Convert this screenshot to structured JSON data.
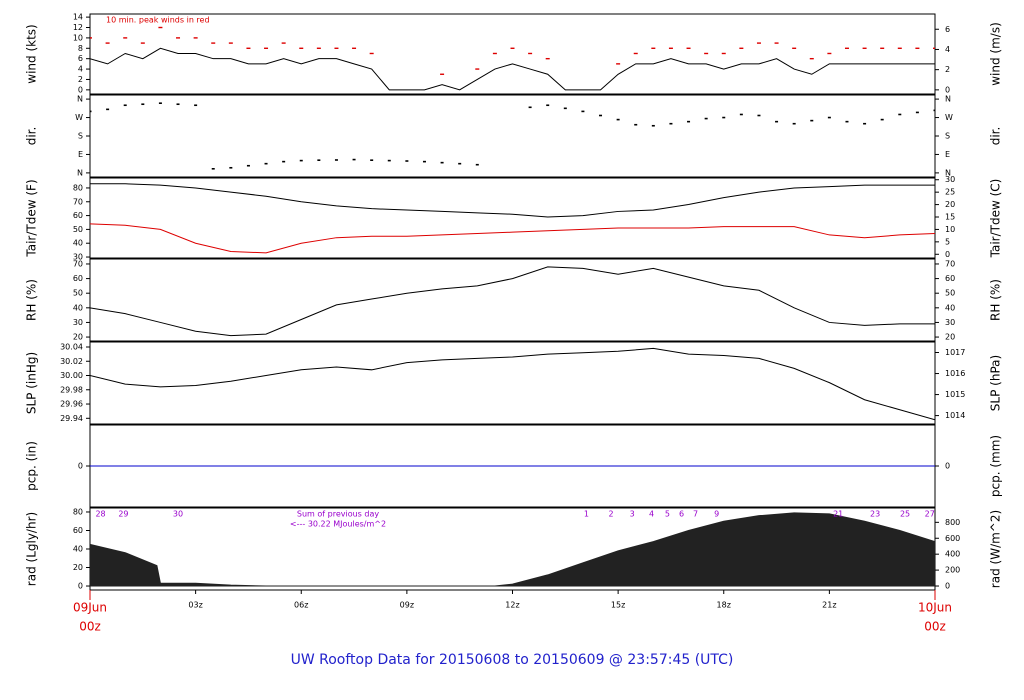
{
  "title": "UW Rooftop Data for 20150608  to  20150609 @ 23:57:45  (UTC)",
  "xlim": [
    0,
    24
  ],
  "xticks": [
    {
      "value": 0,
      "label": "09Jun"
    },
    {
      "value": 3,
      "label": "03z"
    },
    {
      "value": 6,
      "label": "06z"
    },
    {
      "value": 9,
      "label": "09z"
    },
    {
      "value": 12,
      "label": "12z"
    },
    {
      "value": 15,
      "label": "15z"
    },
    {
      "value": 18,
      "label": "18z"
    },
    {
      "value": 21,
      "label": "21z"
    },
    {
      "value": 24,
      "label": "10Jun"
    }
  ],
  "x_sublabels": [
    {
      "value": 0,
      "label": "00z"
    },
    {
      "value": 24,
      "label": "00z"
    }
  ],
  "chart_data": [
    {
      "type": "line",
      "ylabel": "wind (kts)",
      "y2label": "wind (m/s)",
      "annotation": "10 min. peak winds in red",
      "ylim": [
        -0.8,
        14.6
      ],
      "yticks": [
        0,
        2,
        4,
        6,
        8,
        10,
        12,
        14
      ],
      "y2lim": [
        -0.41,
        7.51
      ],
      "y2ticks": [
        0,
        2,
        4,
        6
      ],
      "series": [
        {
          "color": "#000000",
          "x": [
            0,
            0.5,
            1,
            1.5,
            2,
            2.5,
            3,
            3.5,
            4,
            4.5,
            5,
            5.5,
            6,
            6.5,
            7,
            7.5,
            8,
            8.5,
            9,
            9.5,
            10,
            10.5,
            11,
            11.5,
            12,
            12.5,
            13,
            13.5,
            14,
            14.5,
            15,
            15.5,
            16,
            16.5,
            17,
            17.5,
            18,
            18.5,
            19,
            19.5,
            20,
            20.5,
            21,
            21.5,
            22,
            22.5,
            23,
            23.5,
            24
          ],
          "values": [
            6,
            5,
            7,
            6,
            8,
            7,
            7,
            6,
            6,
            5,
            5,
            6,
            5,
            6,
            6,
            5,
            4,
            0,
            0,
            0,
            1,
            0,
            2,
            4,
            5,
            4,
            3,
            0,
            0,
            0,
            3,
            5,
            5,
            6,
            5,
            5,
            4,
            5,
            5,
            6,
            4,
            3,
            5,
            5,
            5,
            5,
            5,
            5,
            5
          ]
        },
        {
          "type": "dots",
          "color": "#dd0000",
          "x": [
            0,
            0.5,
            1,
            1.5,
            2,
            2.5,
            3,
            3.5,
            4,
            4.5,
            5,
            5.5,
            6,
            6.5,
            7,
            7.5,
            8,
            8.5,
            9,
            9.5,
            10,
            10.5,
            11,
            11.5,
            12,
            12.5,
            13,
            13.5,
            14,
            14.5,
            15,
            15.5,
            16,
            16.5,
            17,
            17.5,
            18,
            18.5,
            19,
            19.5,
            20,
            20.5,
            21,
            21.5,
            22,
            22.5,
            23,
            23.5,
            24
          ],
          "values": [
            10,
            9,
            10,
            9,
            12,
            10,
            10,
            9,
            9,
            8,
            8,
            9,
            8,
            8,
            8,
            8,
            7,
            null,
            null,
            null,
            3,
            null,
            4,
            7,
            8,
            7,
            6,
            null,
            null,
            null,
            5,
            7,
            8,
            8,
            8,
            7,
            7,
            8,
            9,
            9,
            8,
            6,
            7,
            8,
            8,
            8,
            8,
            8,
            8
          ]
        }
      ]
    },
    {
      "type": "scatter",
      "ylabel": "dir.",
      "y2label": "dir.",
      "ylim": [
        -20,
        380
      ],
      "yticks": [
        {
          "value": 0,
          "label": "N"
        },
        {
          "value": 90,
          "label": "E"
        },
        {
          "value": 180,
          "label": "S"
        },
        {
          "value": 270,
          "label": "W"
        },
        {
          "value": 360,
          "label": "N"
        }
      ],
      "y2lim": [
        -20,
        380
      ],
      "y2ticks": [
        {
          "value": 0,
          "label": "N"
        },
        {
          "value": 90,
          "label": "E"
        },
        {
          "value": 180,
          "label": "S"
        },
        {
          "value": 270,
          "label": "W"
        },
        {
          "value": 360,
          "label": "N"
        }
      ],
      "series": [
        {
          "color": "#000000",
          "x": [
            0,
            0.5,
            1,
            1.5,
            2,
            2.5,
            3,
            3.5,
            4,
            4.5,
            5,
            5.5,
            6,
            6.5,
            7,
            7.5,
            8,
            8.5,
            9,
            9.5,
            10,
            10.5,
            11,
            11.5,
            12,
            12.5,
            13,
            13.5,
            14,
            14.5,
            15,
            15.5,
            16,
            16.5,
            17,
            17.5,
            18,
            18.5,
            19,
            19.5,
            20,
            20.5,
            21,
            21.5,
            22,
            22.5,
            23,
            23.5,
            24
          ],
          "values": [
            300,
            310,
            330,
            335,
            340,
            335,
            330,
            20,
            25,
            35,
            45,
            55,
            60,
            62,
            63,
            65,
            62,
            60,
            58,
            55,
            50,
            45,
            40,
            null,
            null,
            320,
            330,
            315,
            300,
            280,
            260,
            235,
            230,
            240,
            250,
            265,
            270,
            285,
            280,
            250,
            240,
            255,
            270,
            250,
            240,
            260,
            285,
            295,
            305
          ]
        }
      ]
    },
    {
      "type": "line",
      "ylabel": "Tair/Tdew (F)",
      "y2label": "Tair/Tdew (C)",
      "ylim": [
        29.3,
        87.2
      ],
      "yticks": [
        30,
        40,
        50,
        60,
        70,
        80
      ],
      "y2lim": [
        -1.5,
        30.7
      ],
      "y2ticks": [
        0,
        5,
        10,
        15,
        20,
        25,
        30
      ],
      "series": [
        {
          "color": "#000000",
          "x": [
            0,
            1,
            2,
            3,
            4,
            5,
            6,
            7,
            8,
            9,
            10,
            11,
            12,
            13,
            14,
            15,
            16,
            17,
            18,
            19,
            20,
            21,
            22,
            23,
            24
          ],
          "values": [
            83,
            83,
            82,
            80,
            77,
            74,
            70,
            67,
            65,
            64,
            63,
            62,
            61,
            59,
            60,
            63,
            64,
            68,
            73,
            77,
            80,
            81,
            82,
            82,
            82
          ]
        },
        {
          "color": "#dd0000",
          "x": [
            0,
            1,
            2,
            3,
            4,
            5,
            6,
            7,
            8,
            9,
            10,
            11,
            12,
            13,
            14,
            15,
            16,
            17,
            18,
            19,
            20,
            21,
            22,
            23,
            24
          ],
          "values": [
            54,
            53,
            50,
            40,
            34,
            33,
            40,
            44,
            45,
            45,
            46,
            47,
            48,
            49,
            50,
            51,
            51,
            51,
            52,
            52,
            52,
            46,
            44,
            46,
            47
          ]
        }
      ]
    },
    {
      "type": "line",
      "ylabel": "RH (%)",
      "y2label": "RH (%)",
      "ylim": [
        17.3,
        73.4
      ],
      "yticks": [
        20,
        30,
        40,
        50,
        60,
        70
      ],
      "y2lim": [
        17.3,
        73.4
      ],
      "y2ticks": [
        20,
        30,
        40,
        50,
        60,
        70
      ],
      "series": [
        {
          "color": "#000000",
          "x": [
            0,
            1,
            2,
            3,
            4,
            5,
            6,
            7,
            8,
            9,
            10,
            11,
            12,
            13,
            14,
            15,
            16,
            17,
            18,
            19,
            20,
            21,
            22,
            23,
            24
          ],
          "values": [
            40,
            36,
            30,
            24,
            21,
            22,
            32,
            42,
            46,
            50,
            53,
            55,
            60,
            68,
            67,
            63,
            67,
            61,
            55,
            52,
            40,
            30,
            28,
            29,
            29
          ]
        }
      ]
    },
    {
      "type": "line",
      "ylabel": "SLP (inHg)",
      "y2label": "SLP (hPa)",
      "ylim": [
        29.932,
        30.047
      ],
      "yticks": [
        29.94,
        29.96,
        29.98,
        {
          "value": 30,
          "label": "30.00"
        },
        30.02,
        30.04
      ],
      "y2lim": [
        1013.6,
        1017.5
      ],
      "y2ticks": [
        1014,
        1015,
        1016,
        1017
      ],
      "series": [
        {
          "color": "#000000",
          "x": [
            0,
            1,
            2,
            3,
            4,
            5,
            6,
            7,
            8,
            9,
            10,
            11,
            12,
            13,
            14,
            15,
            16,
            17,
            18,
            19,
            20,
            21,
            22,
            23,
            24
          ],
          "values": [
            30.0,
            29.988,
            29.984,
            29.986,
            29.992,
            30.0,
            30.008,
            30.012,
            30.008,
            30.018,
            30.022,
            30.024,
            30.026,
            30.03,
            30.032,
            30.034,
            30.038,
            30.03,
            30.028,
            30.024,
            30.01,
            29.99,
            29.966,
            29.952,
            29.938
          ]
        }
      ]
    },
    {
      "type": "line",
      "ylabel": "pcp. (in)",
      "y2label": "pcp. (mm)",
      "ylim": [
        -1,
        1
      ],
      "yticks": [
        0
      ],
      "y2lim": [
        -1,
        1
      ],
      "y2ticks": [
        0
      ],
      "series": [
        {
          "color": "#0000cc",
          "x": [
            0,
            24
          ],
          "values": [
            0,
            0
          ]
        }
      ]
    },
    {
      "type": "area",
      "ylabel": "rad (Lgly/hr)",
      "y2label": "rad (W/m^2)",
      "annotations": [
        "Sum of previous day",
        "<--- 30.22 MJoules/m^2"
      ],
      "markers": {
        "x": [
          0.3,
          0.95,
          2.5,
          14.1,
          14.8,
          15.4,
          15.95,
          16.4,
          16.8,
          17.2,
          17.8,
          21.25,
          22.3,
          23.15,
          23.85
        ],
        "labels": [
          "28",
          "29",
          "30",
          "1",
          "2",
          "3",
          "4",
          "5",
          "6",
          "7",
          "9",
          "21",
          "23",
          "25",
          "27"
        ]
      },
      "ylim": [
        -4.3,
        84.3
      ],
      "yticks": [
        0,
        20,
        40,
        60,
        80
      ],
      "y2lim": [
        -50,
        980
      ],
      "y2ticks": [
        0,
        200,
        400,
        600,
        800
      ],
      "series": [
        {
          "color": "#222222",
          "x": [
            0,
            1,
            1.9,
            2,
            3,
            4,
            5,
            11.5,
            12,
            13,
            14,
            15,
            16,
            17,
            18,
            19,
            20,
            21,
            22,
            23,
            24
          ],
          "values": [
            45,
            36,
            22,
            3,
            3,
            1,
            0,
            0,
            2,
            12,
            25,
            38,
            48,
            60,
            70,
            76,
            79,
            78,
            70,
            60,
            48
          ]
        }
      ]
    }
  ]
}
